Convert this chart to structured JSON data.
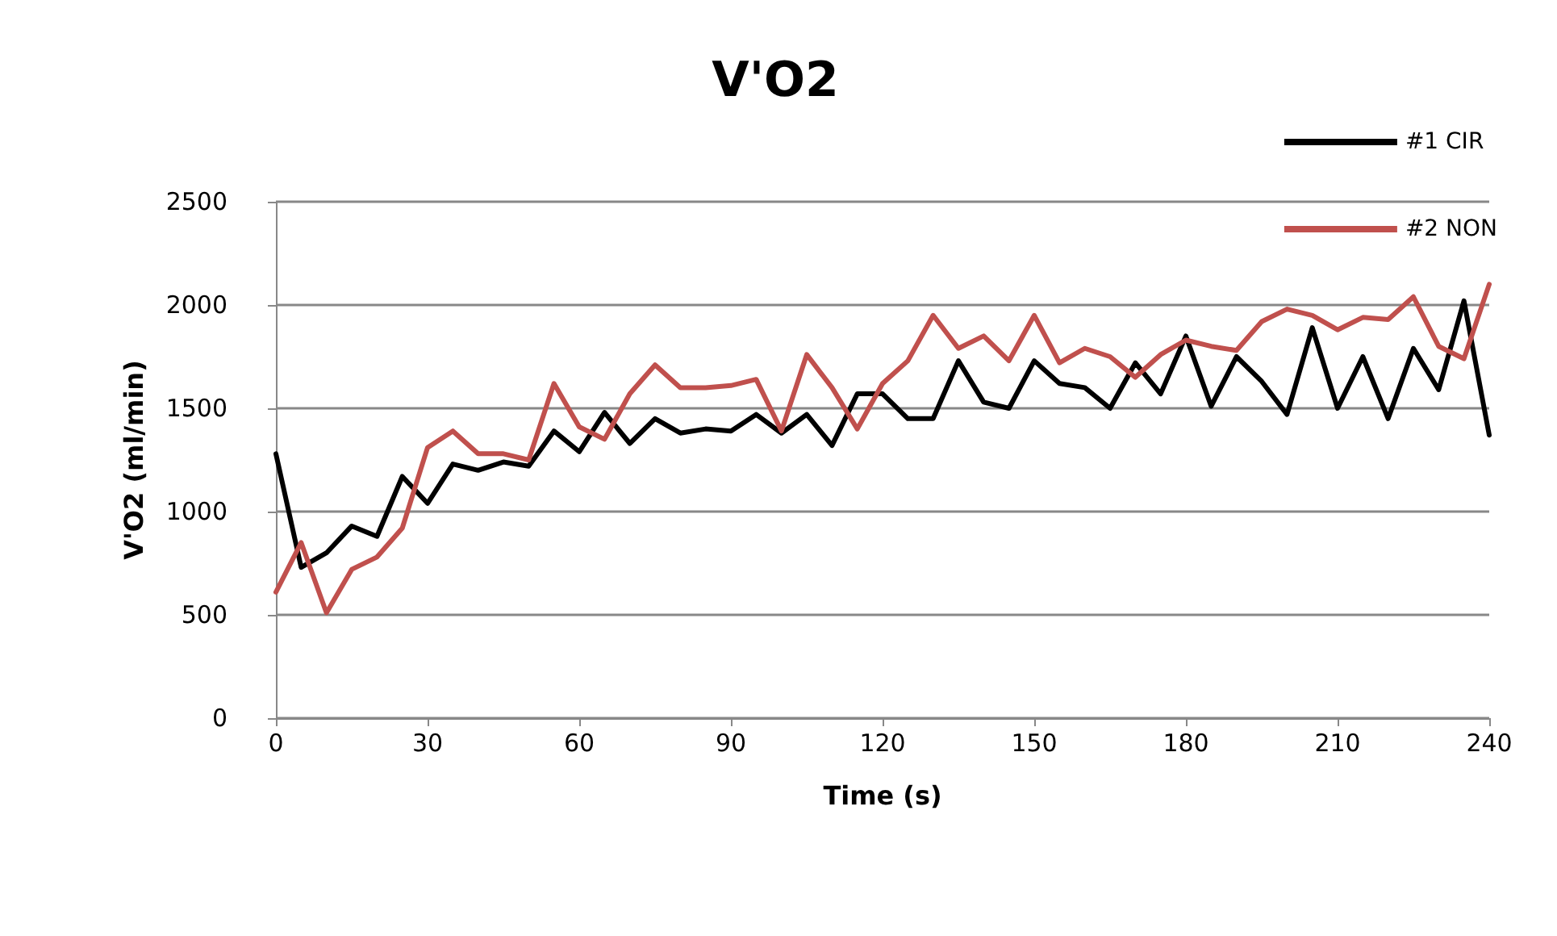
{
  "chart_data": {
    "type": "line",
    "title": "V'O2",
    "xlabel": "Time (s)",
    "ylabel": "V'O2 (ml/min)",
    "x": [
      0,
      5,
      10,
      15,
      20,
      25,
      30,
      35,
      40,
      45,
      50,
      55,
      60,
      65,
      70,
      75,
      80,
      85,
      90,
      95,
      100,
      105,
      110,
      115,
      120,
      125,
      130,
      135,
      140,
      145,
      150,
      155,
      160,
      165,
      170,
      175,
      180,
      185,
      190,
      195,
      200,
      205,
      210,
      215,
      220,
      225,
      230,
      235,
      240
    ],
    "series": [
      {
        "name": "#1 CIR",
        "color": "#000000",
        "values": [
          1280,
          730,
          800,
          930,
          880,
          1170,
          1040,
          1230,
          1200,
          1240,
          1220,
          1390,
          1290,
          1480,
          1330,
          1450,
          1380,
          1400,
          1390,
          1470,
          1380,
          1470,
          1320,
          1570,
          1570,
          1450,
          1450,
          1730,
          1530,
          1500,
          1730,
          1620,
          1600,
          1500,
          1720,
          1570,
          1850,
          1510,
          1750,
          1630,
          1470,
          1890,
          1500,
          1750,
          1450,
          1790,
          1590,
          2020,
          1370
        ]
      },
      {
        "name": "#2 NON",
        "color": "#c0504d",
        "values": [
          610,
          850,
          510,
          720,
          780,
          920,
          1310,
          1390,
          1280,
          1280,
          1250,
          1620,
          1410,
          1350,
          1570,
          1710,
          1600,
          1600,
          1610,
          1640,
          1390,
          1760,
          1600,
          1400,
          1620,
          1730,
          1950,
          1790,
          1850,
          1730,
          1950,
          1720,
          1790,
          1750,
          1650,
          1760,
          1830,
          1800,
          1780,
          1920,
          1980,
          1950,
          1880,
          1940,
          1930,
          2040,
          1800,
          1740,
          2100
        ]
      }
    ],
    "xlim": [
      0,
      240
    ],
    "xticks": [
      0,
      30,
      60,
      90,
      120,
      150,
      180,
      210,
      240
    ],
    "ylim": [
      0,
      2500
    ],
    "yticks": [
      0,
      500,
      1000,
      1500,
      2000,
      2500
    ],
    "grid": "y",
    "legend": "top right",
    "marker": "none",
    "line_style": "solid"
  }
}
